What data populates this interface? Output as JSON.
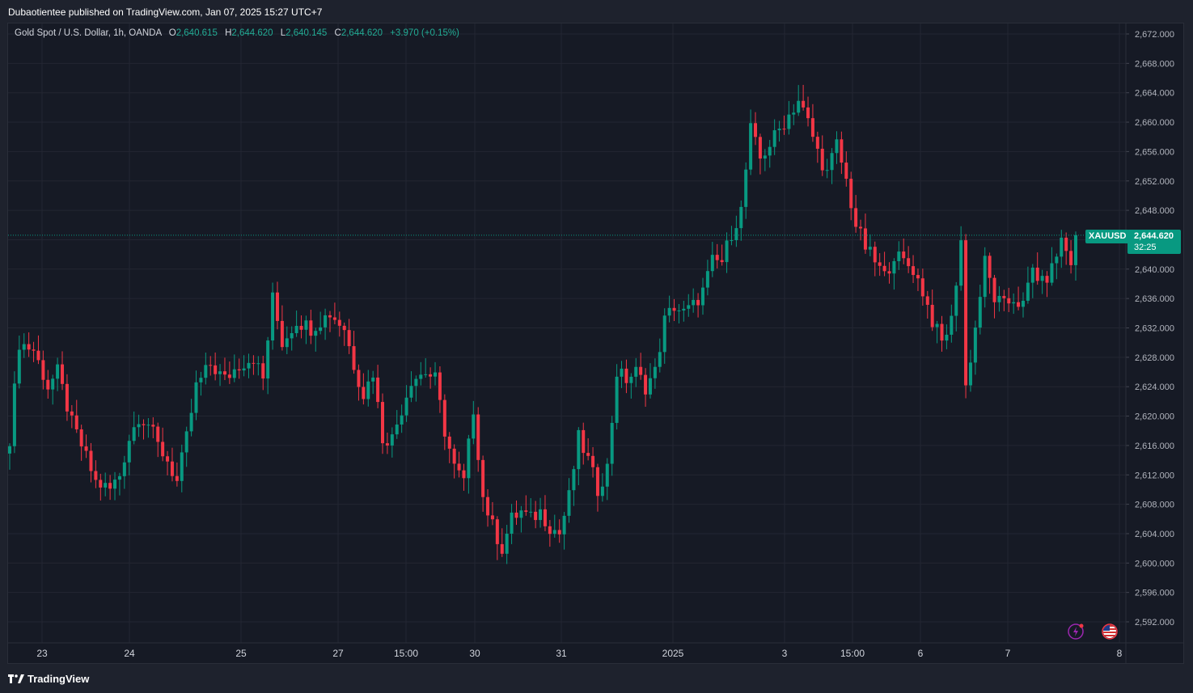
{
  "header": {
    "publisher": "Dubaotientee published on TradingView.com, Jan 07, 2025 15:27 UTC+7"
  },
  "legend": {
    "symbol": "Gold Spot / U.S. Dollar, 1h, OANDA",
    "o_label": "O",
    "o_value": "2,640.615",
    "h_label": "H",
    "h_value": "2,644.620",
    "l_label": "L",
    "l_value": "2,640.145",
    "c_label": "C",
    "c_value": "2,644.620",
    "change": "+3.970 (+0.15%)"
  },
  "price_tag": {
    "symbol": "XAUUSD",
    "price": "2,644.620",
    "countdown": "32:25"
  },
  "footer": {
    "brand": "TradingView"
  },
  "icons": {
    "flash": "flash-icon",
    "flag": "us-flag-icon",
    "logo": "tradingview-logo-icon"
  },
  "colors": {
    "up": "#089981",
    "down": "#f23645",
    "background": "#161a25",
    "grid": "#232632"
  },
  "chart_data": {
    "type": "candlestick",
    "title": "Gold Spot / U.S. Dollar, 1h, OANDA",
    "ylim": [
      2588,
      2676
    ],
    "y_ticks": [
      "2,672.000",
      "2,668.000",
      "2,664.000",
      "2,660.000",
      "2,656.000",
      "2,652.000",
      "2,648.000",
      "2,644.000",
      "2,640.000",
      "2,636.000",
      "2,632.000",
      "2,628.000",
      "2,624.000",
      "2,620.000",
      "2,616.000",
      "2,612.000",
      "2,608.000",
      "2,604.000",
      "2,600.000",
      "2,596.000",
      "2,592.000"
    ],
    "x_ticks": [
      "23",
      "24",
      "25",
      "27",
      "15:00",
      "30",
      "31",
      "2025",
      "3",
      "15:00",
      "6",
      "7",
      "8"
    ],
    "last_price": 2644.62,
    "grid": true,
    "path_points": [
      [
        0,
        2617
      ],
      [
        2,
        2630
      ],
      [
        5,
        2629
      ],
      [
        8,
        2624
      ],
      [
        10,
        2626
      ],
      [
        13,
        2619
      ],
      [
        15,
        2616
      ],
      [
        18,
        2611
      ],
      [
        21,
        2610
      ],
      [
        23,
        2612
      ],
      [
        25,
        2617
      ],
      [
        27,
        2620
      ],
      [
        29,
        2619
      ],
      [
        31,
        2616
      ],
      [
        33,
        2614
      ],
      [
        35,
        2611
      ],
      [
        37,
        2617
      ],
      [
        39,
        2624
      ],
      [
        42,
        2627
      ],
      [
        45,
        2625
      ],
      [
        48,
        2627
      ],
      [
        51,
        2628
      ],
      [
        53,
        2625
      ],
      [
        55,
        2636
      ],
      [
        57,
        2630
      ],
      [
        60,
        2633
      ],
      [
        63,
        2632
      ],
      [
        67,
        2634
      ],
      [
        70,
        2632
      ],
      [
        72,
        2627
      ],
      [
        74,
        2623
      ],
      [
        76,
        2626
      ],
      [
        78,
        2617
      ],
      [
        80,
        2617
      ],
      [
        82,
        2621
      ],
      [
        84,
        2625
      ],
      [
        87,
        2626
      ],
      [
        89,
        2625
      ],
      [
        91,
        2618
      ],
      [
        93,
        2613
      ],
      [
        95,
        2611
      ],
      [
        97,
        2621
      ],
      [
        99,
        2609
      ],
      [
        101,
        2605
      ],
      [
        103,
        2602
      ],
      [
        105,
        2606
      ],
      [
        107,
        2607
      ],
      [
        109,
        2606
      ],
      [
        111,
        2607
      ],
      [
        113,
        2605
      ],
      [
        115,
        2604
      ],
      [
        117,
        2609
      ],
      [
        119,
        2617
      ],
      [
        121,
        2614
      ],
      [
        123,
        2610
      ],
      [
        125,
        2613
      ],
      [
        127,
        2626
      ],
      [
        129,
        2625
      ],
      [
        131,
        2626
      ],
      [
        133,
        2624
      ],
      [
        135,
        2626
      ],
      [
        137,
        2633
      ],
      [
        139,
        2635
      ],
      [
        141,
        2634
      ],
      [
        143,
        2635
      ],
      [
        145,
        2637
      ],
      [
        147,
        2641
      ],
      [
        149,
        2641
      ],
      [
        151,
        2645
      ],
      [
        153,
        2648
      ],
      [
        155,
        2659
      ],
      [
        157,
        2655
      ],
      [
        159,
        2657
      ],
      [
        161,
        2659
      ],
      [
        163,
        2661
      ],
      [
        165,
        2663
      ],
      [
        167,
        2660
      ],
      [
        169,
        2656
      ],
      [
        171,
        2653
      ],
      [
        173,
        2657
      ],
      [
        175,
        2652
      ],
      [
        177,
        2646
      ],
      [
        179,
        2643
      ],
      [
        181,
        2641
      ],
      [
        183,
        2639
      ],
      [
        185,
        2642
      ],
      [
        187,
        2641
      ],
      [
        189,
        2640
      ],
      [
        191,
        2637
      ],
      [
        193,
        2633
      ],
      [
        195,
        2630
      ],
      [
        197,
        2633
      ],
      [
        199,
        2644
      ],
      [
        200,
        2624
      ],
      [
        202,
        2632
      ],
      [
        204,
        2641
      ],
      [
        206,
        2636
      ],
      [
        208,
        2635
      ],
      [
        210,
        2636
      ],
      [
        212,
        2635
      ],
      [
        214,
        2640
      ],
      [
        216,
        2638
      ],
      [
        218,
        2640
      ],
      [
        220,
        2644
      ],
      [
        222,
        2641
      ],
      [
        223,
        2644.62
      ]
    ]
  }
}
